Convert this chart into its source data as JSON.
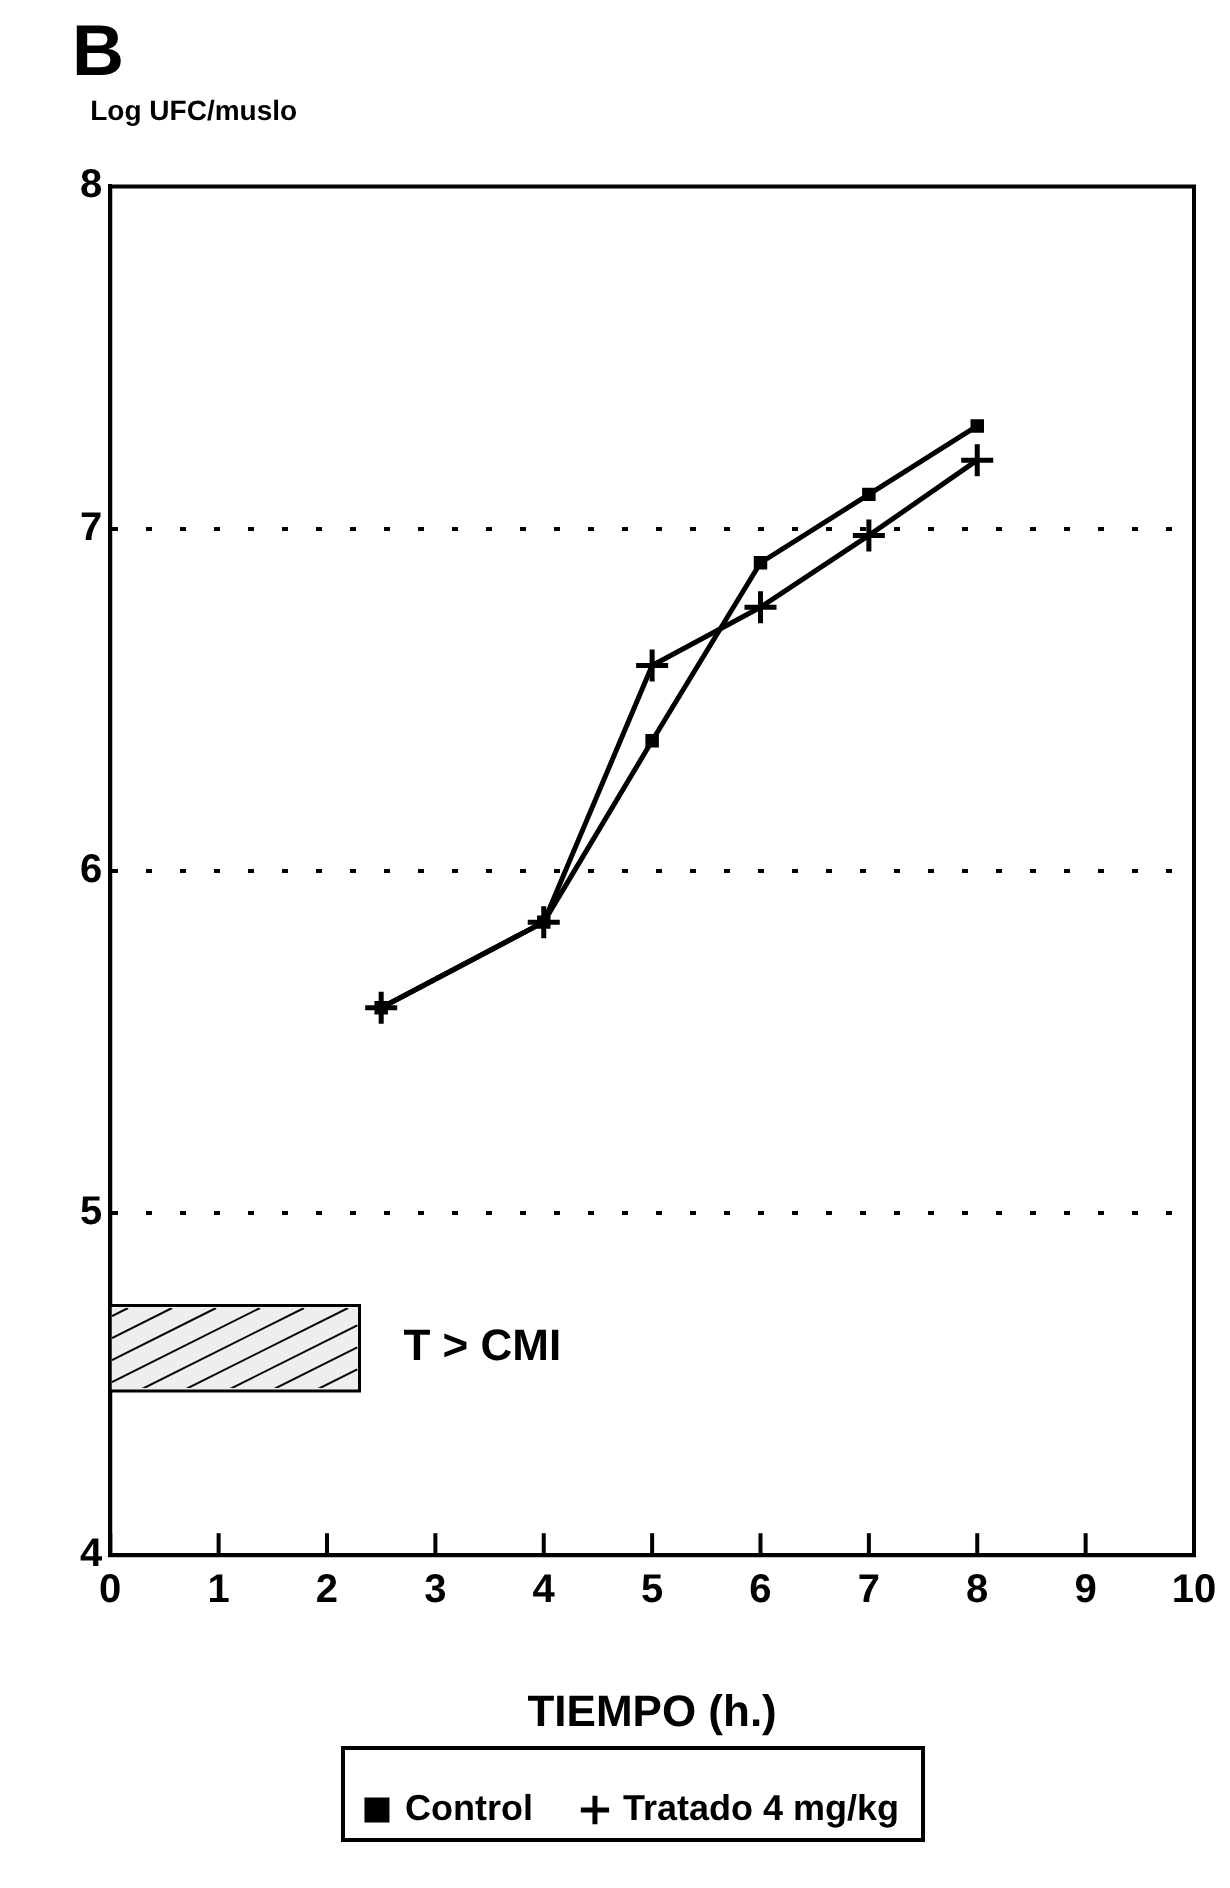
{
  "chart_data": {
    "type": "line",
    "title": "B",
    "ylabel": "Log UFC/muslo",
    "xlabel": "TIEMPO (h.)",
    "x": [
      2.5,
      4,
      5,
      6,
      7,
      8
    ],
    "series": [
      {
        "name": "Control",
        "color": "#000000",
        "marker": "square",
        "values": [
          5.6,
          5.85,
          6.38,
          6.9,
          7.1,
          7.3
        ]
      },
      {
        "name": "Tratado 4 mg/kg",
        "color": "#000000",
        "marker": "cross",
        "values": [
          5.6,
          5.85,
          6.6,
          6.77,
          6.98,
          7.2
        ]
      }
    ],
    "xlim": [
      0,
      10
    ],
    "xticks": [
      0,
      1,
      2,
      3,
      4,
      5,
      6,
      7,
      8,
      9,
      10
    ],
    "ylim": [
      4,
      8
    ],
    "yticks": [
      4,
      5,
      6,
      7,
      8
    ],
    "grid": "y",
    "line_style": "solid",
    "legend": "bottom",
    "bands": [
      {
        "axis": "x",
        "from": 0,
        "to": 2.3,
        "label": "T > CMI"
      }
    ]
  }
}
